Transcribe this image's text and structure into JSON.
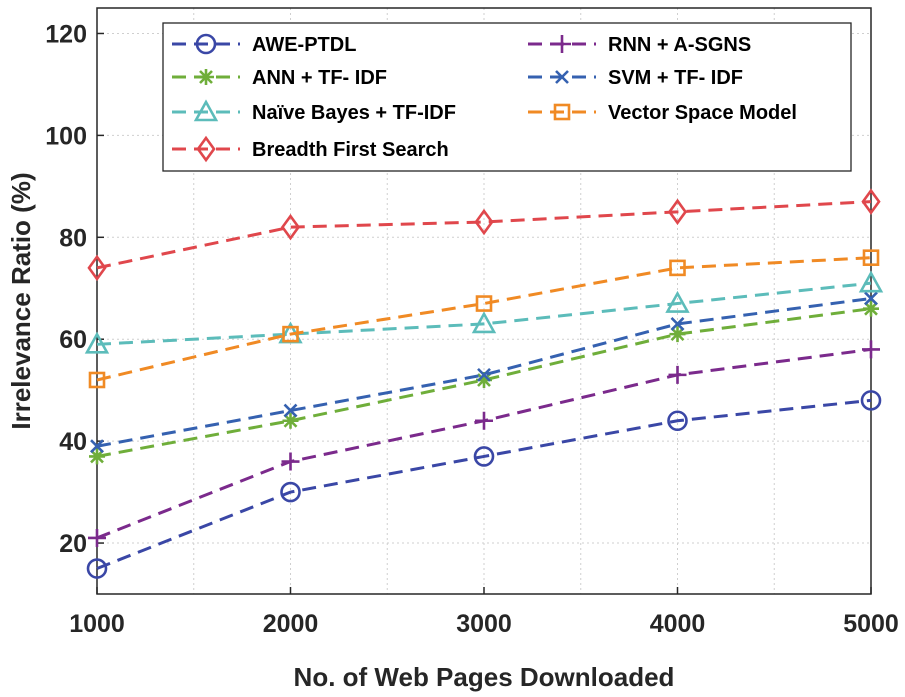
{
  "chart_data": {
    "type": "line",
    "title": "",
    "xlabel": "No. of Web Pages Downloaded",
    "ylabel": "Irrelevance Ratio (%)",
    "x": [
      1000,
      2000,
      3000,
      4000,
      5000
    ],
    "x_tick_labels": [
      "1000",
      "2000",
      "3000",
      "4000",
      "5000"
    ],
    "xlim": [
      1000,
      5000
    ],
    "ylim": [
      10,
      125
    ],
    "y_ticks": [
      20,
      40,
      60,
      80,
      100,
      120
    ],
    "grid": true,
    "legend_position": "top",
    "series": [
      {
        "name": "AWE-PTDL",
        "color": "#3a47a6",
        "marker": "circle",
        "values": [
          15,
          30,
          37,
          44,
          48
        ]
      },
      {
        "name": "RNN + A-SGNS",
        "color": "#7b2a8c",
        "marker": "plus",
        "values": [
          21,
          36,
          44,
          53,
          58
        ]
      },
      {
        "name": "ANN + TF- IDF",
        "color": "#6fae3a",
        "marker": "asterisk",
        "values": [
          37,
          44,
          52,
          61,
          66
        ]
      },
      {
        "name": "SVM + TF- IDF",
        "color": "#3561b0",
        "marker": "x",
        "values": [
          39,
          46,
          53,
          63,
          68
        ]
      },
      {
        "name": "Naïve Bayes + TF-IDF",
        "color": "#5cbcba",
        "marker": "triangle",
        "values": [
          59,
          61,
          63,
          67,
          71
        ]
      },
      {
        "name": "Vector Space Model",
        "color": "#f08a24",
        "marker": "square",
        "values": [
          52,
          61,
          67,
          74,
          76
        ]
      },
      {
        "name": "Breadth First Search",
        "color": "#e0474c",
        "marker": "diamond",
        "values": [
          74,
          82,
          83,
          85,
          87
        ]
      }
    ]
  }
}
